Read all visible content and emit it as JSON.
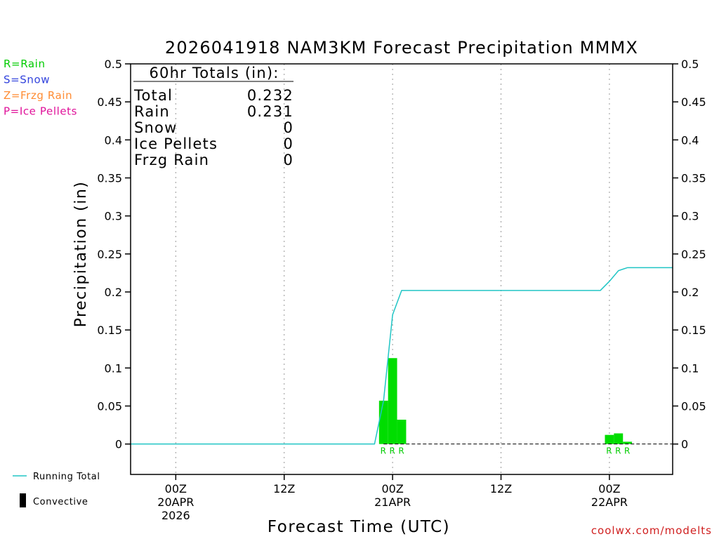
{
  "chart_data": {
    "type": "bar",
    "title": "2026041918 NAM3KM Forecast Precipitation MMMX",
    "xlabel": "Forecast Time (UTC)",
    "ylabel": "Precipitation (in)",
    "ylim": [
      -0.04,
      0.5
    ],
    "xlim": [
      -5,
      55
    ],
    "yticks": [
      "0",
      "0.05",
      "0.1",
      "0.15",
      "0.2",
      "0.25",
      "0.3",
      "0.35",
      "0.4",
      "0.45",
      "0.5"
    ],
    "ytick_values": [
      0,
      0.05,
      0.1,
      0.15,
      0.2,
      0.25,
      0.3,
      0.35,
      0.4,
      0.45,
      0.5
    ],
    "xticks": [
      {
        "hour": 0,
        "lines": [
          "00Z",
          "20APR",
          "2026"
        ]
      },
      {
        "hour": 12,
        "lines": [
          "12Z"
        ]
      },
      {
        "hour": 24,
        "lines": [
          "00Z",
          "21APR"
        ]
      },
      {
        "hour": 36,
        "lines": [
          "12Z"
        ]
      },
      {
        "hour": 48,
        "lines": [
          "00Z",
          "22APR"
        ]
      }
    ],
    "grid": "vertical dotted at tick hours",
    "legend_placement": "left",
    "legend": [
      {
        "label": "R=Rain",
        "color": "#00cc00"
      },
      {
        "label": "S=Snow",
        "color": "#3344dd"
      },
      {
        "label": "Z=Frzg Rain",
        "color": "#ff8c33"
      },
      {
        "label": "P=Ice Pellets",
        "color": "#e0139a"
      }
    ],
    "series_legend": [
      {
        "label": "Running Total",
        "kind": "line",
        "color": "#20c5c5"
      },
      {
        "label": "Convective",
        "kind": "bar",
        "color": "#000000"
      }
    ],
    "bars": [
      {
        "hour": 23,
        "value": 0.057,
        "type": "R"
      },
      {
        "hour": 24,
        "value": 0.113,
        "type": "R"
      },
      {
        "hour": 25,
        "value": 0.032,
        "type": "R"
      },
      {
        "hour": 48,
        "value": 0.012,
        "type": "R"
      },
      {
        "hour": 49,
        "value": 0.014,
        "type": "R"
      },
      {
        "hour": 50,
        "value": 0.003,
        "type": "R"
      }
    ],
    "running_total": [
      {
        "hour": -5,
        "value": 0
      },
      {
        "hour": 22,
        "value": 0
      },
      {
        "hour": 23,
        "value": 0.057
      },
      {
        "hour": 24,
        "value": 0.17
      },
      {
        "hour": 25,
        "value": 0.202
      },
      {
        "hour": 47,
        "value": 0.202
      },
      {
        "hour": 48,
        "value": 0.214
      },
      {
        "hour": 49,
        "value": 0.228
      },
      {
        "hour": 50,
        "value": 0.232
      },
      {
        "hour": 55,
        "value": 0.232
      }
    ],
    "bar_color": "#00dd00",
    "line_color": "#20c5c5",
    "totals_box": {
      "heading": "60hr Totals (in):",
      "rows": [
        {
          "label": "Total",
          "value": "0.232"
        },
        {
          "label": "Rain",
          "value": "0.231"
        },
        {
          "label": "Snow",
          "value": "0"
        },
        {
          "label": "Ice Pellets",
          "value": "0"
        },
        {
          "label": "Frzg Rain",
          "value": "0"
        }
      ]
    }
  },
  "credit": "coolwx.com/modelts",
  "credit_color": "#d02020"
}
